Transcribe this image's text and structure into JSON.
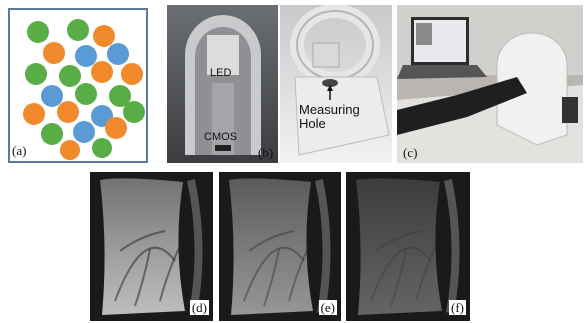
{
  "figure": {
    "panels": [
      {
        "label": "(a)"
      },
      {
        "label": "(b)",
        "annotations": [
          "LED",
          "CMOS",
          "Measuring Hole"
        ]
      },
      {
        "label": "(c)"
      },
      {
        "label": "(d)"
      },
      {
        "label": "(e)"
      },
      {
        "label": "(f)"
      }
    ]
  }
}
